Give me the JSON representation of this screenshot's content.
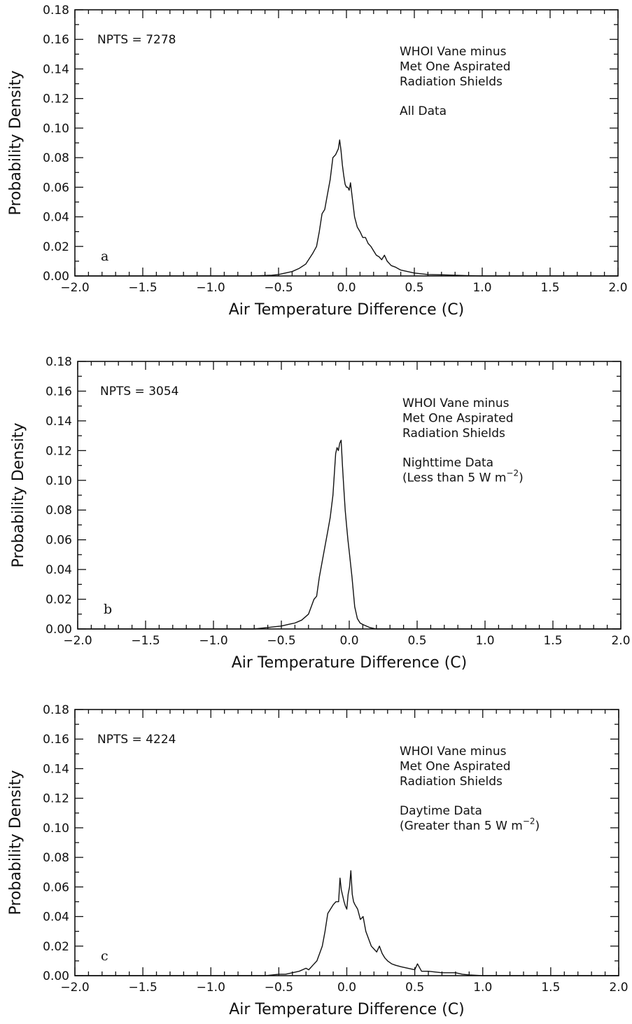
{
  "chart_data": [
    {
      "type": "line",
      "xlabel": "Air Temperature Difference (C)",
      "ylabel": "Probability Density",
      "xlim": [
        -2.0,
        2.0
      ],
      "ylim": [
        0.0,
        0.18
      ],
      "x_ticks": [
        "-2.0",
        "-1.5",
        "-1.0",
        "-0.5",
        "0.0",
        "0.5",
        "1.0",
        "1.5",
        "2.0"
      ],
      "y_ticks": [
        "0.00",
        "0.02",
        "0.04",
        "0.06",
        "0.08",
        "0.10",
        "0.12",
        "0.14",
        "0.16",
        "0.18"
      ],
      "annotations": {
        "npts": "NPTS  =  7278",
        "lines": [
          "WHOI  Vane  minus",
          "Met  One  Aspirated",
          "Radiation  Shields"
        ],
        "condition": [
          "All  Data"
        ],
        "panel_letter": "a"
      },
      "series": [
        {
          "x": [
            -2.0,
            -0.7,
            -0.55,
            -0.5,
            -0.45,
            -0.4,
            -0.35,
            -0.3,
            -0.25,
            -0.22,
            -0.2,
            -0.18,
            -0.16,
            -0.14,
            -0.12,
            -0.1,
            -0.08,
            -0.06,
            -0.05,
            -0.04,
            -0.03,
            -0.02,
            -0.01,
            0.0,
            0.01,
            0.02,
            0.03,
            0.04,
            0.06,
            0.08,
            0.1,
            0.12,
            0.14,
            0.16,
            0.18,
            0.2,
            0.22,
            0.24,
            0.26,
            0.28,
            0.3,
            0.33,
            0.36,
            0.4,
            0.45,
            0.5,
            0.6,
            0.7,
            0.8,
            0.9,
            1.0,
            2.0
          ],
          "y": [
            0.0,
            0.0,
            0.0005,
            0.001,
            0.002,
            0.003,
            0.005,
            0.008,
            0.015,
            0.02,
            0.03,
            0.042,
            0.045,
            0.055,
            0.065,
            0.08,
            0.082,
            0.086,
            0.092,
            0.085,
            0.075,
            0.068,
            0.062,
            0.06,
            0.06,
            0.058,
            0.063,
            0.055,
            0.04,
            0.033,
            0.03,
            0.026,
            0.026,
            0.022,
            0.02,
            0.017,
            0.014,
            0.013,
            0.011,
            0.014,
            0.01,
            0.007,
            0.006,
            0.004,
            0.003,
            0.002,
            0.001,
            0.0008,
            0.0005,
            0.0002,
            0.0,
            0.0
          ]
        }
      ]
    },
    {
      "type": "line",
      "xlabel": "Air Temperature Difference (C)",
      "ylabel": "Probability Density",
      "xlim": [
        -2.0,
        2.0
      ],
      "ylim": [
        0.0,
        0.18
      ],
      "x_ticks": [
        "-2.0",
        "-1.5",
        "-1.0",
        "-0.5",
        "0.0",
        "0.5",
        "1.0",
        "1.5",
        "2.0"
      ],
      "y_ticks": [
        "0.00",
        "0.02",
        "0.04",
        "0.06",
        "0.08",
        "0.10",
        "0.12",
        "0.14",
        "0.16",
        "0.18"
      ],
      "annotations": {
        "npts": "NPTS  =  3054",
        "lines": [
          "WHOI  Vane  minus",
          "Met  One  Aspirated",
          "Radiation  Shields"
        ],
        "condition": [
          "Nighttime  Data",
          "(Less  than  5  W  m"
        ],
        "exponent": "−2",
        "closing": ")",
        "panel_letter": "b"
      },
      "series": [
        {
          "x": [
            -2.0,
            -0.7,
            -0.65,
            -0.6,
            -0.55,
            -0.5,
            -0.45,
            -0.4,
            -0.35,
            -0.3,
            -0.28,
            -0.26,
            -0.24,
            -0.22,
            -0.2,
            -0.18,
            -0.16,
            -0.14,
            -0.12,
            -0.1,
            -0.09,
            -0.08,
            -0.07,
            -0.06,
            -0.05,
            -0.04,
            -0.03,
            -0.02,
            -0.01,
            0.0,
            0.02,
            0.04,
            0.06,
            0.08,
            0.1,
            0.15,
            0.2,
            2.0
          ],
          "y": [
            0.0,
            0.0,
            0.0005,
            0.001,
            0.0015,
            0.002,
            0.003,
            0.004,
            0.006,
            0.01,
            0.015,
            0.02,
            0.022,
            0.035,
            0.045,
            0.055,
            0.065,
            0.075,
            0.09,
            0.118,
            0.122,
            0.12,
            0.125,
            0.127,
            0.11,
            0.095,
            0.08,
            0.07,
            0.06,
            0.052,
            0.035,
            0.015,
            0.007,
            0.004,
            0.003,
            0.001,
            0.0,
            0.0
          ]
        }
      ]
    },
    {
      "type": "line",
      "xlabel": "Air Temperature Difference (C)",
      "ylabel": "Probability Density",
      "xlim": [
        -2.0,
        2.0
      ],
      "ylim": [
        0.0,
        0.18
      ],
      "x_ticks": [
        "-2.0",
        "-1.5",
        "-1.0",
        "-0.5",
        "0.0",
        "0.5",
        "1.0",
        "1.5",
        "2.0"
      ],
      "y_ticks": [
        "0.00",
        "0.02",
        "0.04",
        "0.06",
        "0.08",
        "0.10",
        "0.12",
        "0.14",
        "0.16",
        "0.18"
      ],
      "annotations": {
        "npts": "NPTS  =  4224",
        "lines": [
          "WHOI  Vane  minus",
          "Met  One  Aspirated",
          "Radiation  Shields"
        ],
        "condition": [
          "Daytime  Data",
          "(Greater  than  5  W  m"
        ],
        "exponent": "−2",
        "closing": ")",
        "panel_letter": "c"
      },
      "series": [
        {
          "x": [
            -2.0,
            -0.6,
            -0.5,
            -0.45,
            -0.4,
            -0.35,
            -0.3,
            -0.28,
            -0.25,
            -0.22,
            -0.2,
            -0.18,
            -0.16,
            -0.14,
            -0.12,
            -0.1,
            -0.08,
            -0.06,
            -0.05,
            -0.04,
            -0.02,
            -0.01,
            0.0,
            0.01,
            0.02,
            0.03,
            0.04,
            0.05,
            0.06,
            0.08,
            0.1,
            0.12,
            0.14,
            0.16,
            0.18,
            0.2,
            0.22,
            0.24,
            0.26,
            0.28,
            0.3,
            0.33,
            0.36,
            0.4,
            0.45,
            0.5,
            0.52,
            0.55,
            0.6,
            0.7,
            0.8,
            0.85,
            0.9,
            1.0,
            2.0
          ],
          "y": [
            0.0,
            0.0,
            0.001,
            0.001,
            0.002,
            0.003,
            0.005,
            0.004,
            0.007,
            0.01,
            0.015,
            0.02,
            0.03,
            0.042,
            0.045,
            0.048,
            0.05,
            0.05,
            0.066,
            0.058,
            0.05,
            0.047,
            0.045,
            0.055,
            0.06,
            0.071,
            0.055,
            0.05,
            0.048,
            0.045,
            0.038,
            0.04,
            0.03,
            0.025,
            0.02,
            0.018,
            0.016,
            0.02,
            0.015,
            0.012,
            0.01,
            0.008,
            0.007,
            0.006,
            0.005,
            0.004,
            0.008,
            0.003,
            0.003,
            0.002,
            0.002,
            0.001,
            0.0005,
            0.0,
            0.0
          ]
        }
      ]
    }
  ]
}
